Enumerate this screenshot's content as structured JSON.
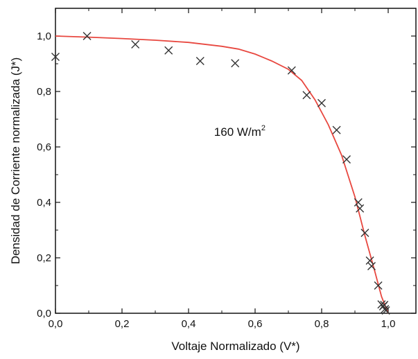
{
  "chart_data": {
    "type": "scatter",
    "xlabel": "Voltaje Normalizado (V*)",
    "ylabel": "Densidad de Corriente normalizada (J*)",
    "xlim": [
      0.0,
      1.0
    ],
    "ylim": [
      0.0,
      1.0
    ],
    "x_ticks": [
      "0,0",
      "0,2",
      "0,4",
      "0,6",
      "0,8",
      "1,0"
    ],
    "y_ticks": [
      "0,0",
      "0,2",
      "0,4",
      "0,6",
      "0,8",
      "1,0"
    ],
    "annotation": {
      "text": "160 W/m",
      "superscript": "2",
      "x": 0.56,
      "y": 0.64
    },
    "grid": false,
    "series": [
      {
        "marker": "x",
        "color": "#333333",
        "x": [
          0.0,
          0.095,
          0.24,
          0.34,
          0.435,
          0.54,
          0.71,
          0.755,
          0.8,
          0.845,
          0.875,
          0.91,
          0.915,
          0.93,
          0.945,
          0.95,
          0.97,
          0.98,
          0.985,
          0.988,
          0.99,
          0.993
        ],
        "y": [
          0.925,
          1.0,
          0.97,
          0.948,
          0.91,
          0.902,
          0.876,
          0.787,
          0.758,
          0.661,
          0.555,
          0.4,
          0.378,
          0.29,
          0.19,
          0.17,
          0.1,
          0.032,
          0.025,
          0.03,
          0.015,
          0.01
        ]
      },
      {
        "line": true,
        "color": "#e8473f",
        "x": [
          0.0,
          0.1,
          0.2,
          0.3,
          0.4,
          0.5,
          0.55,
          0.6,
          0.65,
          0.7,
          0.74,
          0.78,
          0.82,
          0.86,
          0.9,
          0.93,
          0.96,
          0.98,
          1.0
        ],
        "y": [
          1.0,
          0.996,
          0.991,
          0.985,
          0.977,
          0.963,
          0.953,
          0.935,
          0.91,
          0.88,
          0.84,
          0.77,
          0.68,
          0.57,
          0.42,
          0.28,
          0.15,
          0.06,
          0.0
        ]
      }
    ]
  }
}
